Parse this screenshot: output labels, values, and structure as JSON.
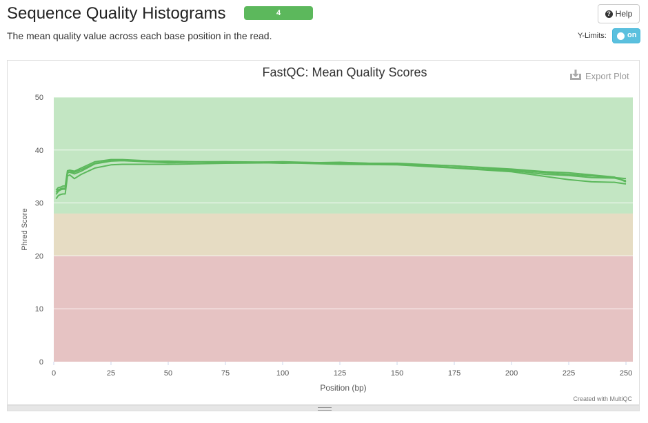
{
  "header": {
    "title": "Sequence Quality Histograms",
    "badge": "4",
    "help_label": "Help",
    "subtitle": "The mean quality value across each base position in the read.",
    "ylimits_label": "Y-Limits:",
    "toggle_label": "on"
  },
  "plot": {
    "export_label": "Export Plot",
    "credit": "Created with MultiQC"
  },
  "colors": {
    "line": "#5cb85c",
    "band_good": "#c3e6c3",
    "band_warn": "#e6dcc3",
    "band_fail": "#e6c3c3",
    "accent_badge": "#5cb85c",
    "toggle": "#5bc0de"
  },
  "chart_data": {
    "type": "line",
    "title": "FastQC: Mean Quality Scores",
    "xlabel": "Position (bp)",
    "ylabel": "Phred Score",
    "xlim": [
      0,
      253
    ],
    "ylim": [
      0,
      50
    ],
    "xticks": [
      0,
      25,
      50,
      75,
      100,
      125,
      150,
      175,
      200,
      225,
      250
    ],
    "yticks": [
      0,
      10,
      20,
      30,
      40,
      50
    ],
    "grid": true,
    "bands": [
      {
        "from": 28,
        "to": 50,
        "zone": "good"
      },
      {
        "from": 20,
        "to": 28,
        "zone": "warning"
      },
      {
        "from": 0,
        "to": 20,
        "zone": "fail"
      }
    ],
    "series": [
      {
        "x": [
          1,
          2,
          3,
          4,
          5,
          6,
          7,
          9,
          12,
          18,
          25,
          30,
          40,
          50,
          75,
          100,
          125,
          150,
          175,
          200,
          215,
          225,
          235,
          245,
          250
        ],
        "values": [
          32.4,
          32.9,
          33.0,
          33.2,
          33.2,
          36.1,
          36.2,
          36.0,
          36.6,
          37.8,
          38.2,
          38.2,
          38.0,
          37.8,
          37.8,
          37.7,
          37.6,
          37.4,
          37.0,
          36.3,
          35.7,
          35.4,
          35.1,
          34.8,
          34.6
        ]
      },
      {
        "x": [
          1,
          2,
          3,
          4,
          5,
          6,
          7,
          9,
          12,
          18,
          25,
          30,
          40,
          50,
          75,
          100,
          125,
          150,
          175,
          200,
          215,
          225,
          235,
          245,
          250
        ],
        "values": [
          31.6,
          32.2,
          32.5,
          32.6,
          32.6,
          35.6,
          35.9,
          35.8,
          36.3,
          37.5,
          38.0,
          38.1,
          37.9,
          37.9,
          37.6,
          37.8,
          37.5,
          37.5,
          37.0,
          36.4,
          35.9,
          35.7,
          35.3,
          34.9,
          34.0
        ]
      },
      {
        "x": [
          1,
          2,
          3,
          4,
          5,
          6,
          7,
          9,
          12,
          18,
          25,
          30,
          40,
          50,
          75,
          100,
          125,
          150,
          175,
          200,
          215,
          225,
          235,
          245,
          250
        ],
        "values": [
          32.0,
          32.5,
          32.7,
          32.8,
          32.8,
          35.9,
          35.8,
          35.5,
          36.0,
          37.4,
          37.9,
          38.0,
          37.8,
          37.6,
          37.8,
          37.5,
          37.7,
          37.3,
          36.7,
          36.1,
          35.4,
          35.2,
          34.8,
          34.7,
          34.2
        ]
      },
      {
        "x": [
          1,
          2,
          3,
          4,
          5,
          6,
          7,
          9,
          12,
          18,
          25,
          30,
          40,
          50,
          75,
          100,
          125,
          150,
          175,
          200,
          215,
          225,
          235,
          245,
          250
        ],
        "values": [
          30.8,
          31.4,
          31.6,
          31.7,
          31.7,
          35.1,
          35.3,
          34.6,
          35.4,
          36.6,
          37.2,
          37.3,
          37.3,
          37.3,
          37.5,
          37.6,
          37.3,
          37.2,
          36.6,
          35.9,
          35.0,
          34.4,
          34.0,
          33.9,
          33.6
        ]
      }
    ]
  }
}
